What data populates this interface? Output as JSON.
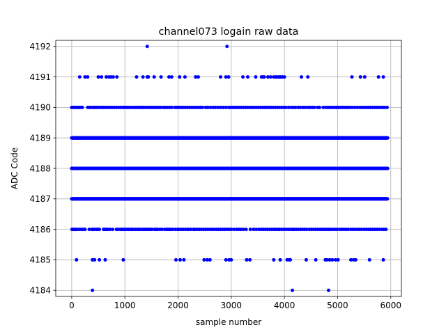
{
  "chart_data": {
    "type": "scatter",
    "title": "channel073 logain raw data",
    "xlabel": "sample number",
    "ylabel": "ADC Code",
    "xlim": [
      -300,
      6200
    ],
    "ylim": [
      4183.8,
      4192.2
    ],
    "xticks": [
      0,
      1000,
      2000,
      3000,
      4000,
      5000,
      6000
    ],
    "yticks": [
      4184,
      4185,
      4186,
      4187,
      4188,
      4189,
      4190,
      4191,
      4192
    ],
    "grid": true,
    "marker_color": "#0000ff",
    "x_max": 5940,
    "dense_levels": [
      {
        "y": 4188,
        "step": 3
      },
      {
        "y": 4189,
        "step": 5
      },
      {
        "y": 4187,
        "step": 7
      }
    ],
    "sparse_levels": [
      {
        "y": 4186,
        "x": [
          5,
          30,
          50,
          80,
          110,
          150,
          180,
          215,
          250,
          330,
          380,
          400,
          420,
          460,
          490,
          520,
          600,
          620,
          650,
          680,
          720,
          770,
          840,
          870,
          910,
          940,
          960,
          990,
          1010,
          1040,
          1070,
          1100,
          1130,
          1160,
          1200,
          1230,
          1260,
          1290,
          1330,
          1360,
          1390,
          1420,
          1450,
          1480,
          1510,
          1560,
          1590,
          1620,
          1660,
          1700,
          1750,
          1780,
          1810,
          1840,
          1860,
          1900,
          1950,
          1990,
          2020,
          2060,
          2100,
          2140,
          2180,
          2200,
          2240,
          2290,
          2320,
          2360,
          2400,
          2440,
          2480,
          2520,
          2560,
          2600,
          2640,
          2680,
          2720,
          2760,
          2800,
          2840,
          2880,
          2920,
          2960,
          3000,
          3050,
          3100,
          3140,
          3180,
          3230,
          3280,
          3360,
          3420,
          3470,
          3520,
          3560,
          3600,
          3640,
          3680,
          3720,
          3760,
          3800,
          3840,
          3880,
          3910,
          3950,
          3990,
          4030,
          4070,
          4110,
          4150,
          4180,
          4220,
          4260,
          4300,
          4340,
          4380,
          4420,
          4470,
          4510,
          4550,
          4590,
          4630,
          4670,
          4710,
          4750,
          4790,
          4830,
          4870,
          4910,
          4950,
          4990,
          5040,
          5080,
          5120,
          5160,
          5200,
          5250,
          5290,
          5330,
          5370,
          5410,
          5450,
          5500,
          5540,
          5580,
          5620,
          5660,
          5700,
          5740,
          5780,
          5830,
          5870,
          5910
        ]
      },
      {
        "y": 4190,
        "x": [
          0,
          25,
          50,
          75,
          100,
          125,
          150,
          175,
          200,
          300,
          330,
          360,
          400,
          430,
          460,
          490,
          520,
          560,
          600,
          640,
          680,
          720,
          760,
          800,
          840,
          880,
          920,
          960,
          990,
          1030,
          1060,
          1100,
          1140,
          1180,
          1210,
          1250,
          1290,
          1330,
          1360,
          1400,
          1440,
          1470,
          1510,
          1550,
          1590,
          1630,
          1670,
          1720,
          1760,
          1800,
          1840,
          1880,
          1940,
          1980,
          2020,
          2060,
          2100,
          2140,
          2180,
          2220,
          2260,
          2300,
          2340,
          2380,
          2420,
          2460,
          2520,
          2560,
          2610,
          2660,
          2700,
          2750,
          2800,
          2850,
          2900,
          2950,
          2990,
          3030,
          3070,
          3110,
          3150,
          3190,
          3230,
          3270,
          3310,
          3350,
          3390,
          3430,
          3470,
          3510,
          3550,
          3590,
          3630,
          3670,
          3710,
          3750,
          3790,
          3830,
          3870,
          3910,
          3950,
          3990,
          4030,
          4080,
          4130,
          4170,
          4210,
          4260,
          4300,
          4350,
          4390,
          4440,
          4480,
          4520,
          4560,
          4620,
          4660,
          4730,
          4780,
          4820,
          4860,
          4900,
          4940,
          4980,
          5020,
          5060,
          5100,
          5140,
          5180,
          5220,
          5270,
          5320,
          5370,
          5420,
          5460,
          5500,
          5540,
          5580,
          5620,
          5660,
          5700,
          5740,
          5780,
          5820,
          5860,
          5880,
          5930
        ]
      },
      {
        "y": 4191,
        "x": [
          150,
          250,
          300,
          500,
          560,
          650,
          700,
          740,
          780,
          850,
          1220,
          1340,
          1420,
          1440,
          1550,
          1680,
          1830,
          1880,
          2030,
          2130,
          2330,
          2380,
          2800,
          2900,
          2950,
          3220,
          3310,
          3460,
          3570,
          3600,
          3620,
          3690,
          3740,
          3800,
          3840,
          3870,
          3900,
          3930,
          3960,
          4000,
          4320,
          4440,
          5270,
          5430,
          5510,
          5770,
          5860
        ]
      },
      {
        "y": 4185,
        "x": [
          90,
          390,
          430,
          520,
          630,
          970,
          1960,
          2040,
          2110,
          2490,
          2550,
          2600,
          2900,
          2960,
          3000,
          3290,
          3350,
          3800,
          3920,
          4050,
          4090,
          4110,
          4410,
          4590,
          4770,
          4800,
          4850,
          4900,
          4960,
          5010,
          5250,
          5300,
          5340,
          5600,
          5860
        ]
      },
      {
        "y": 4192,
        "x": [
          1420,
          2920
        ]
      },
      {
        "y": 4184,
        "x": [
          390,
          4150,
          4830
        ]
      }
    ]
  }
}
